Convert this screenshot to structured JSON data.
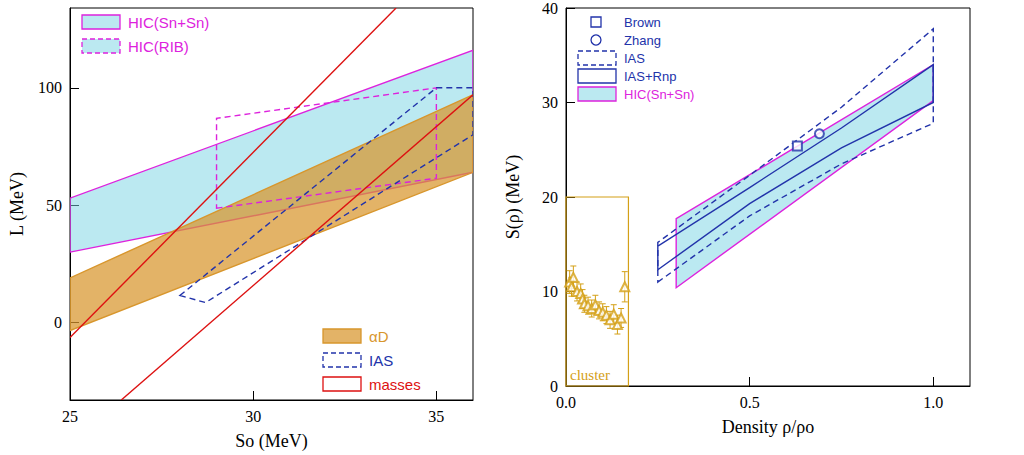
{
  "chart_data": [
    {
      "type": "line",
      "x_label": "So (MeV)",
      "y_label": "L (MeV)",
      "xlim": [
        25,
        36
      ],
      "xticks": [
        25,
        30,
        35
      ],
      "ylim": [
        -33,
        134
      ],
      "yticks": [
        0,
        50,
        100
      ],
      "series": [
        {
          "name": "HIC(Sn+Sn)",
          "type": "band",
          "color": "#dd22dd",
          "legend": "upper left",
          "lower": [
            [
              25,
              30
            ],
            [
              36,
              64
            ]
          ],
          "upper": [
            [
              25,
              53
            ],
            [
              36,
              116
            ]
          ]
        },
        {
          "name": "HIC(RIB)",
          "type": "polygon",
          "color": "#dd22dd",
          "line_style": "dashed",
          "legend": "upper left",
          "points": [
            [
              29,
              48.7
            ],
            [
              35,
              61.5
            ],
            [
              35,
              100
            ],
            [
              29,
              87
            ]
          ]
        },
        {
          "name": "αD",
          "type": "band",
          "color": "#d8962c",
          "legend": "lower right",
          "lower": [
            [
              25,
              -3.4
            ],
            [
              36,
              64
            ]
          ],
          "upper": [
            [
              25,
              19
            ],
            [
              36,
              97
            ]
          ]
        },
        {
          "name": "IAS",
          "type": "polygon",
          "color": "#2233aa",
          "line_style": "dashed",
          "legend": "lower right",
          "points": [
            [
              28,
              11.5
            ],
            [
              28.7,
              8.5
            ],
            [
              36,
              80
            ],
            [
              36,
              100
            ],
            [
              35,
              100
            ]
          ]
        },
        {
          "name": "masses",
          "type": "band",
          "color": "#dd1111",
          "legend": "lower right",
          "lower": [
            [
              26.4,
              -33
            ],
            [
              36,
              97
            ]
          ],
          "upper": [
            [
              25,
              -6.4
            ],
            [
              33.9,
              134
            ]
          ]
        }
      ]
    },
    {
      "type": "line",
      "x_label": "Density ρ/ρo",
      "y_label": "S(ρ) (MeV)",
      "xlim": [
        0,
        1.1
      ],
      "xticks": [
        {
          "value": 0,
          "label": "0.0"
        },
        0.5,
        {
          "value": 1,
          "label": "1.0"
        }
      ],
      "ylim": [
        0,
        40
      ],
      "yticks": [
        0,
        10,
        20,
        30,
        40
      ],
      "series": [
        {
          "name": "Brown",
          "type": "scatter",
          "marker": "square",
          "color": "#2233aa",
          "legend": "upper left",
          "values": [
            [
              0.63,
              25.4
            ]
          ]
        },
        {
          "name": "Zhang",
          "type": "scatter",
          "marker": "circle",
          "color": "#2233aa",
          "legend": "upper left",
          "values": [
            [
              0.69,
              26.7
            ]
          ]
        },
        {
          "name": "IAS",
          "type": "band",
          "color": "#2233aa",
          "line_style": "dashed",
          "legend": "upper left",
          "lower": [
            [
              0.25,
              11
            ],
            [
              0.5,
              18
            ],
            [
              0.75,
              23.5
            ],
            [
              1,
              27.8
            ]
          ],
          "upper": [
            [
              0.25,
              15.2
            ],
            [
              0.5,
              22.3
            ],
            [
              0.75,
              29.5
            ],
            [
              1,
              37.8
            ]
          ]
        },
        {
          "name": "IAS+Rnp",
          "type": "band",
          "color": "#2233aa",
          "line_style": "solid",
          "legend": "upper left",
          "lower": [
            [
              0.25,
              12.3
            ],
            [
              0.5,
              19.3
            ],
            [
              0.75,
              25.2
            ],
            [
              1,
              30
            ]
          ],
          "upper": [
            [
              0.25,
              14.8
            ],
            [
              0.5,
              21
            ],
            [
              0.75,
              27.3
            ],
            [
              1,
              34
            ]
          ]
        },
        {
          "name": "HIC(Sn+Sn)",
          "type": "band",
          "color": "#dd22dd",
          "legend": "upper left",
          "lower": [
            [
              0.3,
              10.4
            ],
            [
              1,
              30.2
            ]
          ],
          "upper": [
            [
              0.3,
              17.7
            ],
            [
              1,
              34
            ]
          ]
        },
        {
          "name": "cluster",
          "type": "box",
          "color": "#d4a017",
          "x": [
            0,
            0.17
          ],
          "y": [
            0,
            20
          ]
        },
        {
          "type": "scatter",
          "marker": "triangle",
          "color": "#d4a017",
          "values": [
            [
              0.01,
              11
            ],
            [
              0.015,
              10.5
            ],
            [
              0.02,
              11.5
            ],
            [
              0.03,
              10
            ],
            [
              0.04,
              9.8
            ],
            [
              0.045,
              9.2
            ],
            [
              0.05,
              8.7
            ],
            [
              0.06,
              8.5
            ],
            [
              0.07,
              8.2
            ],
            [
              0.08,
              8.6
            ],
            [
              0.09,
              8
            ],
            [
              0.1,
              7.8
            ],
            [
              0.11,
              7.5
            ],
            [
              0.12,
              7
            ],
            [
              0.13,
              7.6
            ],
            [
              0.14,
              6.5
            ],
            [
              0.15,
              7.2
            ],
            [
              0.16,
              10.5
            ]
          ],
          "errors": [
            1.2,
            1,
            1.2,
            1,
            1,
            1,
            0.9,
            0.9,
            0.9,
            1,
            0.9,
            0.9,
            0.9,
            0.9,
            1,
            1,
            1,
            1.6
          ]
        }
      ]
    }
  ]
}
